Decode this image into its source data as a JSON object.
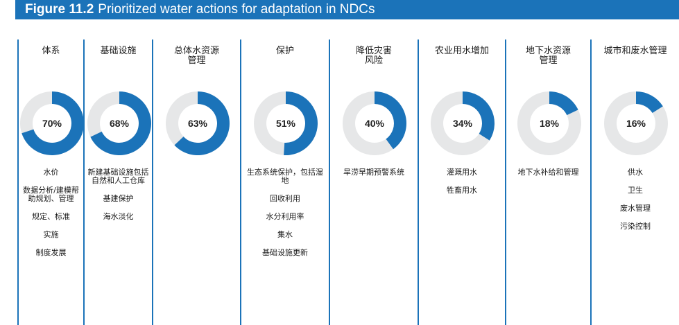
{
  "figure": {
    "number": "Figure 11.2",
    "title": "Prioritized water actions for adaptation in NDCs"
  },
  "colors": {
    "accent": "#1b73b9",
    "track": "#e6e7e8"
  },
  "chart_data": {
    "type": "pie",
    "title": "Prioritized water actions for adaptation in NDCs",
    "categories": [
      "体系",
      "基础设施",
      "总体水资源管理",
      "保护",
      "降低灾害风险",
      "农业用水增加",
      "地下水资源管理",
      "城市和废水管理"
    ],
    "values": [
      70,
      68,
      63,
      51,
      40,
      34,
      18,
      16
    ],
    "labels": [
      "70%",
      "68%",
      "63%",
      "51%",
      "40%",
      "34%",
      "18%",
      "16%"
    ]
  },
  "columns": [
    {
      "title": "体系",
      "pct": "70%",
      "items": [
        "水价",
        "数据分析/建模帮助规划、管理",
        "规定、标准",
        "实施",
        "制度发展"
      ]
    },
    {
      "title": "基础设施",
      "pct": "68%",
      "items": [
        "新建基础设施包括自然和人工仓库",
        "基建保护",
        "海水淡化"
      ]
    },
    {
      "title": "总体水资源管理",
      "pct": "63%",
      "items": []
    },
    {
      "title": "保护",
      "pct": "51%",
      "items": [
        "生态系统保护，包括湿地",
        "回收利用",
        "水分利用率",
        "集水",
        "基础设施更新"
      ]
    },
    {
      "title": "降低灾害风险",
      "pct": "40%",
      "items": [
        "旱涝早期预警系统"
      ]
    },
    {
      "title": "农业用水增加",
      "pct": "34%",
      "items": [
        "灌溉用水",
        "牲畜用水"
      ]
    },
    {
      "title": "地下水资源管理",
      "pct": "18%",
      "items": [
        "地下水补给和管理"
      ]
    },
    {
      "title": "城市和废水管理",
      "pct": "16%",
      "items": [
        "供水",
        "卫生",
        "废水管理",
        "污染控制"
      ]
    }
  ]
}
